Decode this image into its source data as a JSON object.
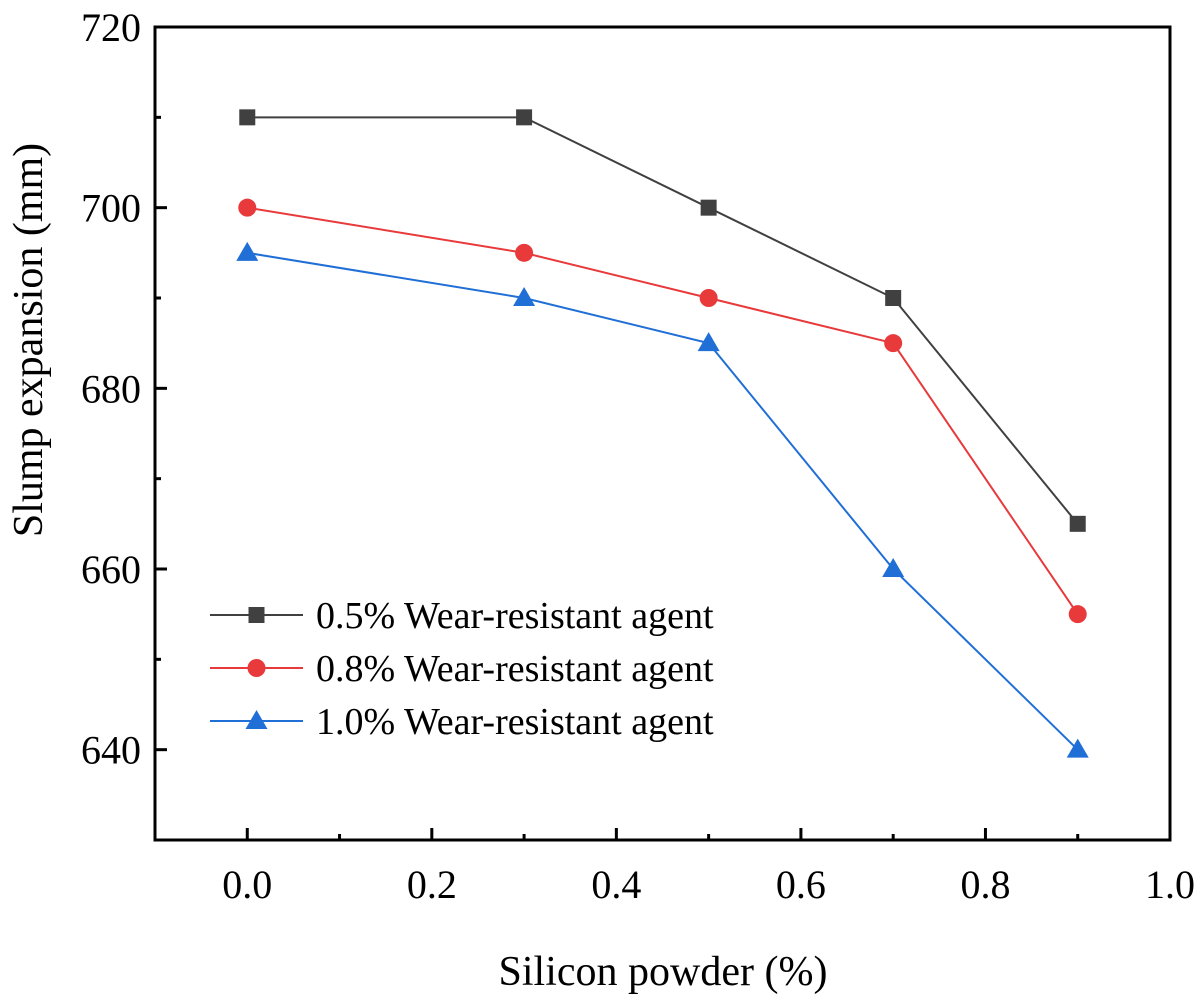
{
  "chart_data": {
    "type": "line",
    "title": "",
    "xlabel": "Silicon powder (%)",
    "ylabel": "Slump expansion (mm)",
    "xlim": [
      -0.1,
      1.0
    ],
    "ylim": [
      630,
      720
    ],
    "xticks": [
      0.0,
      0.2,
      0.4,
      0.6,
      0.8,
      1.0
    ],
    "xtick_labels": [
      "0.0",
      "0.2",
      "0.4",
      "0.6",
      "0.8",
      "1.0"
    ],
    "yticks": [
      640,
      660,
      680,
      700,
      720
    ],
    "ytick_labels": [
      "640",
      "660",
      "680",
      "700",
      "720"
    ],
    "x": [
      0.0,
      0.3,
      0.5,
      0.7,
      0.9
    ],
    "series": [
      {
        "name": "0.5% Wear-resistant agent",
        "values": [
          710,
          710,
          700,
          690,
          665
        ],
        "color": "#404040",
        "marker": "square"
      },
      {
        "name": "0.8% Wear-resistant agent",
        "values": [
          700,
          695,
          690,
          685,
          655
        ],
        "color": "#e8393b",
        "marker": "circle"
      },
      {
        "name": "1.0% Wear-resistant agent",
        "values": [
          695,
          690,
          685,
          660,
          640
        ],
        "color": "#1f6fd6",
        "marker": "triangle"
      }
    ],
    "legend_position": "lower-left",
    "grid": false
  }
}
